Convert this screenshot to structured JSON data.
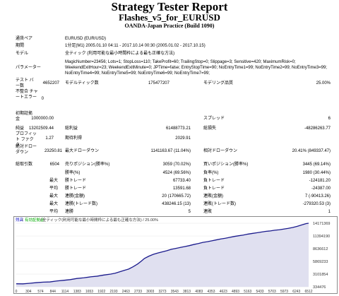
{
  "header": {
    "title": "Strategy Tester Report",
    "ea_name": "Flashes_v5_for_EURUSD",
    "server": "OANDA-Japan Practice (Build 1090)"
  },
  "info": {
    "symbol_label": "通貨ペア",
    "symbol": "EURUSD (EUR/USD)",
    "period_label": "期間",
    "period": "1分足(M1) 2005.01.10 04:11 - 2017.10.14 00:30 (2005.01.02 - 2017.10.15)",
    "model_label": "モデル",
    "model": "全ティック (利用可能な最小時間枠による最も正確な方法)",
    "params_label": "パラメーター",
    "params_lines": [
      "MagicNumber=23456; Lots=1; StopLoss=110; TakeProfit=60; TrailingStop=0; Slippage=3; Sensitive=420; MaximumRisk=0;",
      "WeekendExitHour=23; WeekendExitMinute=0; JPTime=false; EntryStopTime=90; NoEntryTime1=99; NoEntryTime2=99; NoEntryTime3=99;",
      "NoEntryTime4=99; NoEntryTime5=99; NoEntryTime6=99; NoEntryTime7=99;"
    ]
  },
  "stats": {
    "bars_label": "テスト バー数",
    "bars": "4652207",
    "ticks_label": "モデルティック数",
    "ticks": "175477207",
    "quality_label": "モデリング品質",
    "quality": "25.00%",
    "mismatch_label": "不整合 チャートエラー",
    "mismatch": "0",
    "deposit_label": "初期証拠金",
    "deposit": "1000000.00",
    "spread_label": "スプレッド",
    "spread": "6",
    "netprofit_label": "純益",
    "netprofit": "13202509.44",
    "grossprofit_label": "総利益",
    "grossprofit": "61488773.21",
    "grossloss_label": "総損失",
    "grossloss": "-48286263.77",
    "pf_label": "プロフィット ファクタ",
    "pf": "1.27",
    "payoff_label": "期待利得",
    "payoff": "2029.91",
    "absdd_label": "絶対ドローダウン",
    "absdd": "23250.81",
    "maxdd_label": "最大ドローダウン",
    "maxdd": "1141163.67 (11.04%)",
    "reldd_label": "相対ドローダウン",
    "reldd": "20.41% (849337.47)",
    "trades_label": "総取引数",
    "trades": "6504",
    "short_label": "売りポジション(勝率%)",
    "short": "3059 (70.02%)",
    "long_label": "買いポジション(勝率%)",
    "long": "3445 (69.14%)",
    "win_label": "勝率(%)",
    "win": "4524 (69.56%)",
    "loss_label": "負率(%)",
    "loss": "1980 (30.44%)",
    "max_label": "最大",
    "avg_label": "平均",
    "maxwin_label": "勝トレード",
    "maxwin": "67733.40",
    "maxloss_label": "負トレード",
    "maxloss": "-124181.20",
    "avgwin_label": "勝トレード",
    "avgwin": "13591.68",
    "avgloss_label": "負トレード",
    "avgloss": "-24387.00",
    "mcw_label": "連勝(金額)",
    "mcw": "20 (170665.72)",
    "mcl_label": "連敗(金額)",
    "mcl": "7 (-90413.26)",
    "mcp_label": "連勝(トレード数)",
    "mcp": "438246.15 (13)",
    "mcloss_label": "連敗(トレード数)",
    "mcloss": "-279320.53 (3)",
    "acw_label": "連勝",
    "acw": "5",
    "acl_label": "連敗",
    "acl": "1"
  },
  "chart_header": {
    "balance": "残高",
    "separator": "/",
    "equity": "有効証拠金",
    "desc": "/ 全ティック(利用可能な最小時間枠による最も正確な方法) / 25.00%"
  },
  "colors": {
    "line": "#1a1a8c",
    "fill": "#e0e0f0",
    "border": "#8a8a8a",
    "balance": "#1a1acc",
    "equity": "#00aa00"
  },
  "chart_data": {
    "type": "line",
    "title": "",
    "xlabel": "",
    "ylabel": "",
    "x_ticks": [
      "0",
      "304",
      "574",
      "844",
      "1114",
      "1383",
      "1653",
      "1922",
      "2193",
      "2463",
      "2733",
      "3003",
      "3273",
      "3543",
      "3813",
      "4083",
      "4353",
      "4623",
      "4893",
      "5163",
      "5433",
      "5703",
      "5973",
      "6243",
      "6512"
    ],
    "y_ticks": [
      "14171369",
      "11394190",
      "8636612",
      "5869233",
      "3101854",
      "334476"
    ],
    "ylim": [
      334476,
      14171369
    ],
    "xlim": [
      0,
      6504
    ],
    "series": [
      {
        "values": [
          [
            0,
            1000000
          ],
          [
            150,
            980000
          ],
          [
            300,
            1100000
          ],
          [
            450,
            1250000
          ],
          [
            600,
            1350000
          ],
          [
            750,
            1400000
          ],
          [
            900,
            1600000
          ],
          [
            1050,
            1750000
          ],
          [
            1200,
            1900000
          ],
          [
            1350,
            2150000
          ],
          [
            1500,
            2300000
          ],
          [
            1650,
            2500000
          ],
          [
            1800,
            2650000
          ],
          [
            1950,
            2900000
          ],
          [
            2100,
            3100000
          ],
          [
            2200,
            3300000
          ],
          [
            2300,
            3600000
          ],
          [
            2400,
            3900000
          ],
          [
            2500,
            4200000
          ],
          [
            2600,
            4700000
          ],
          [
            2700,
            5300000
          ],
          [
            2780,
            5900000
          ],
          [
            2850,
            6500000
          ],
          [
            2950,
            7000000
          ],
          [
            3050,
            7400000
          ],
          [
            3150,
            7700000
          ],
          [
            3250,
            7950000
          ],
          [
            3350,
            8200000
          ],
          [
            3450,
            8500000
          ],
          [
            3550,
            8700000
          ],
          [
            3650,
            8900000
          ],
          [
            3750,
            9100000
          ],
          [
            3850,
            9300000
          ],
          [
            3950,
            9550000
          ],
          [
            4050,
            9750000
          ],
          [
            4150,
            10000000
          ],
          [
            4250,
            10150000
          ],
          [
            4350,
            10350000
          ],
          [
            4450,
            10550000
          ],
          [
            4550,
            10750000
          ],
          [
            4650,
            10900000
          ],
          [
            4750,
            11100000
          ],
          [
            4850,
            11300000
          ],
          [
            4950,
            11450000
          ],
          [
            5050,
            11600000
          ],
          [
            5150,
            11800000
          ],
          [
            5250,
            11950000
          ],
          [
            5350,
            12100000
          ],
          [
            5450,
            12250000
          ],
          [
            5550,
            12400000
          ],
          [
            5650,
            12500000
          ],
          [
            5750,
            12650000
          ],
          [
            5850,
            12750000
          ],
          [
            5950,
            12900000
          ],
          [
            6050,
            13050000
          ],
          [
            6150,
            13250000
          ],
          [
            6250,
            13500000
          ],
          [
            6350,
            13800000
          ],
          [
            6450,
            14100000
          ],
          [
            6504,
            14171369
          ]
        ]
      }
    ]
  }
}
